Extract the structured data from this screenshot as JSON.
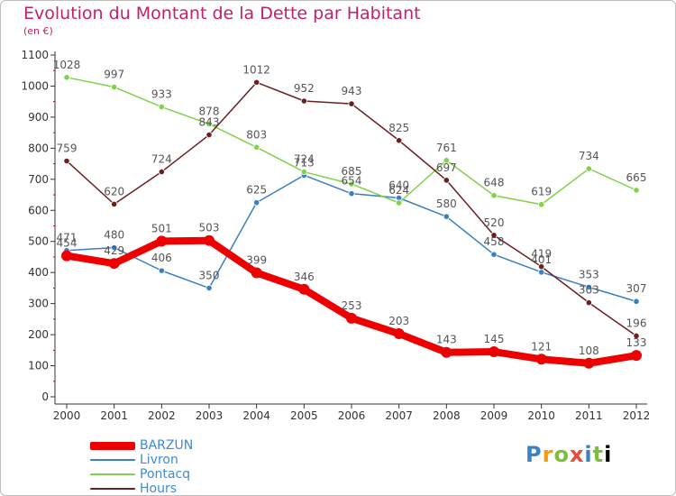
{
  "header": {
    "title": "Evolution du Montant de la Dette par Habitant",
    "subtitle": "(en €)"
  },
  "logo": {
    "letters": [
      "P",
      "r",
      "o",
      "x",
      "i",
      "t",
      "i"
    ]
  },
  "colors": {
    "BARZUN": "#ee0000",
    "Livron": "#3a7fc1",
    "Pontacq": "#7fd24a",
    "Hours": "#6b1f1f",
    "axis": "#333333",
    "tick_mark": "#cc0000",
    "label": "#555555"
  },
  "chart_data": {
    "type": "line",
    "title": "Evolution du Montant de la Dette par Habitant",
    "subtitle": "(en €)",
    "xlabel": "",
    "ylabel": "",
    "ylim": [
      0,
      1100
    ],
    "y_ticks": [
      0,
      100,
      200,
      300,
      400,
      500,
      600,
      700,
      800,
      900,
      1000,
      1100
    ],
    "categories": [
      "2000",
      "2001",
      "2002",
      "2003",
      "2004",
      "2005",
      "2006",
      "2007",
      "2008",
      "2009",
      "2010",
      "2011",
      "2012"
    ],
    "grid": false,
    "legend_position": "bottom-left",
    "series": [
      {
        "name": "BARZUN",
        "values": [
          454,
          429,
          501,
          503,
          399,
          346,
          253,
          203,
          143,
          145,
          121,
          108,
          133
        ]
      },
      {
        "name": "Livron",
        "values": [
          471,
          480,
          406,
          350,
          625,
          713,
          654,
          640,
          580,
          458,
          401,
          353,
          307
        ]
      },
      {
        "name": "Pontacq",
        "values": [
          1028,
          997,
          933,
          878,
          803,
          724,
          685,
          624,
          761,
          648,
          619,
          734,
          665
        ]
      },
      {
        "name": "Hours",
        "values": [
          759,
          620,
          724,
          843,
          1012,
          952,
          943,
          825,
          697,
          520,
          419,
          303,
          196
        ]
      }
    ]
  }
}
